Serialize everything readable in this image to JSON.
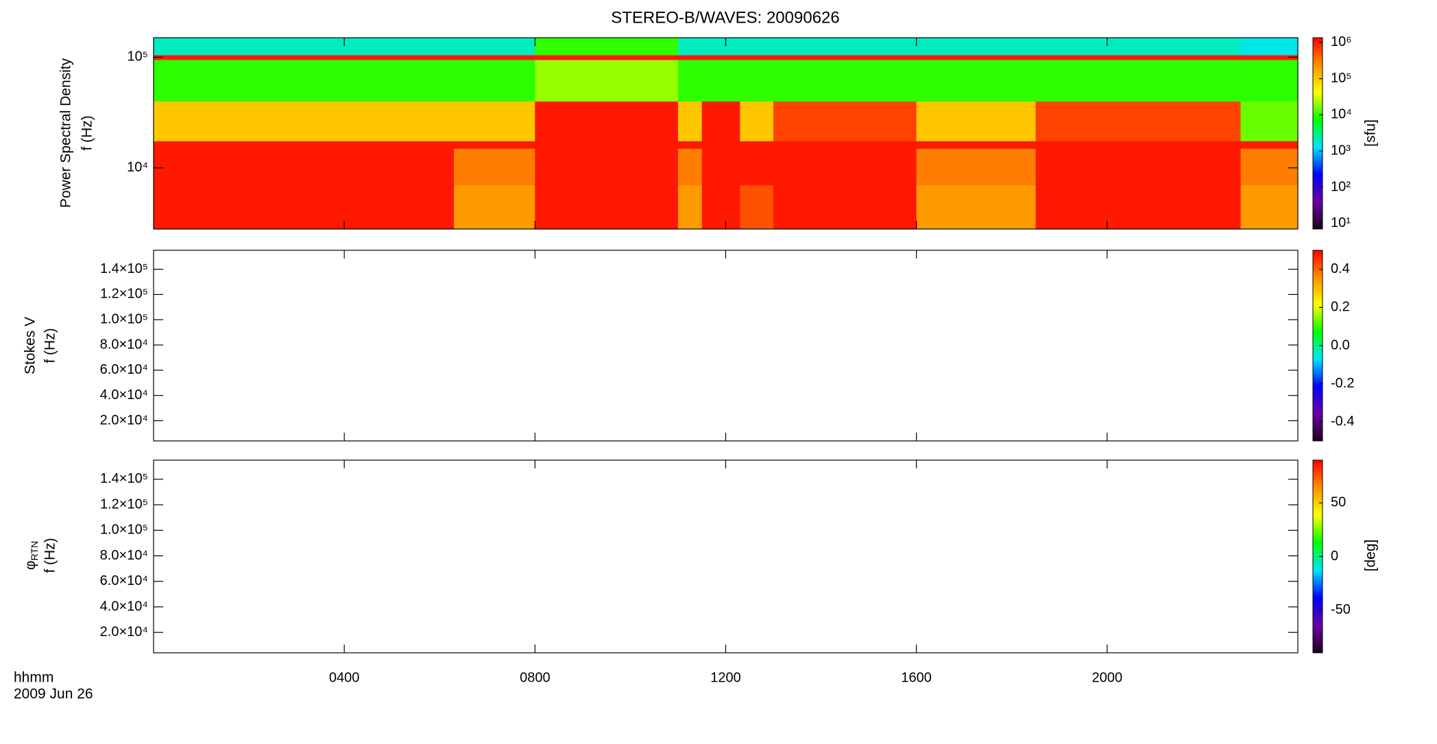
{
  "chart_data": [
    {
      "type": "heatmap",
      "title": "STEREO-B/WAVES: 20090626",
      "ylabel": [
        "Power Spectral Density",
        "f (Hz)"
      ],
      "ylog": true,
      "ylim": [
        2800,
        150000
      ],
      "yticks": [
        {
          "value": 10000,
          "label": "10⁴"
        },
        {
          "value": 100000,
          "label": "10⁵"
        }
      ],
      "xlim": [
        0,
        24
      ],
      "x_edges": [
        0,
        6.3,
        8.0,
        9.5,
        11.0,
        11.5,
        12.3,
        13.0,
        16.0,
        18.5,
        22.8,
        24
      ],
      "y_edges": [
        2800,
        7000,
        15000,
        17500,
        40000,
        95000,
        105000,
        150000
      ],
      "z": [
        [
          1000000,
          200000,
          1000000,
          1000000,
          200000,
          1000000,
          500000,
          1000000,
          200000,
          1000000,
          200000
        ],
        [
          1000000,
          300000,
          1000000,
          1000000,
          300000,
          1000000,
          1000000,
          1000000,
          300000,
          1000000,
          300000
        ],
        [
          1000000,
          1000000,
          1000000,
          1000000,
          1000000,
          1000000,
          1000000,
          1000000,
          1000000,
          1000000,
          1000000
        ],
        [
          100000,
          100000,
          1000000,
          1000000,
          100000,
          1000000,
          100000,
          600000,
          100000,
          600000,
          15000
        ],
        [
          10000,
          10000,
          20000,
          20000,
          10000,
          10000,
          10000,
          10000,
          10000,
          10000,
          10000
        ],
        [
          1000000,
          1000000,
          1000000,
          1000000,
          1000000,
          1000000,
          1000000,
          1000000,
          1000000,
          1000000,
          1000000
        ],
        [
          2000,
          2000,
          10000,
          10000,
          2000,
          2000,
          2000,
          2000,
          2000,
          2000,
          1500
        ]
      ],
      "colorscale": [
        "#1a001a",
        "#6a00a0",
        "#0000ff",
        "#00e5ff",
        "#00ff00",
        "#ffff00",
        "#ff9000",
        "#ff0000"
      ],
      "colorbar": {
        "log": true,
        "lim": [
          7,
          1350000
        ],
        "label": "[sfu]",
        "ticks": [
          {
            "value": 10,
            "label": "10¹"
          },
          {
            "value": 100,
            "label": "10²"
          },
          {
            "value": 1000,
            "label": "10³"
          },
          {
            "value": 10000,
            "label": "10⁴"
          },
          {
            "value": 100000,
            "label": "10⁵"
          },
          {
            "value": 1000000,
            "label": "10⁶"
          }
        ]
      }
    },
    {
      "type": "heatmap",
      "ylabel": [
        "Stokes V",
        "f (Hz)"
      ],
      "ylim": [
        4000,
        155000
      ],
      "yticks": [
        {
          "value": 20000,
          "label": "2.0×10⁴"
        },
        {
          "value": 40000,
          "label": "4.0×10⁴"
        },
        {
          "value": 60000,
          "label": "6.0×10⁴"
        },
        {
          "value": 80000,
          "label": "8.0×10⁴"
        },
        {
          "value": 100000,
          "label": "1.0×10⁵"
        },
        {
          "value": 120000,
          "label": "1.2×10⁵"
        },
        {
          "value": 140000,
          "label": "1.4×10⁵"
        }
      ],
      "xlim": [
        0,
        24
      ],
      "colorscale": [
        "#1a001a",
        "#6a00a0",
        "#0000ff",
        "#00e5ff",
        "#00ff00",
        "#ffff00",
        "#ff9000",
        "#ff0000"
      ],
      "colorbar": {
        "log": false,
        "lim": [
          -0.5,
          0.5
        ],
        "ticks": [
          -0.4,
          -0.2,
          {
            "value": 0,
            "label": "0.0"
          },
          0.2,
          0.4
        ]
      }
    },
    {
      "type": "heatmap",
      "ylabel_symbol": "φ",
      "ylabel_subscript": "RTN",
      "ylabel_unit": "f (Hz)",
      "ylim": [
        4000,
        155000
      ],
      "yticks": [
        {
          "value": 20000,
          "label": "2.0×10⁴"
        },
        {
          "value": 40000,
          "label": "4.0×10⁴"
        },
        {
          "value": 60000,
          "label": "6.0×10⁴"
        },
        {
          "value": 80000,
          "label": "8.0×10⁴"
        },
        {
          "value": 100000,
          "label": "1.0×10⁵"
        },
        {
          "value": 120000,
          "label": "1.2×10⁵"
        },
        {
          "value": 140000,
          "label": "1.4×10⁵"
        }
      ],
      "xlim": [
        0,
        24
      ],
      "xticks": [
        {
          "value": 4,
          "label": "0400"
        },
        {
          "value": 8,
          "label": "0800"
        },
        {
          "value": 12,
          "label": "1200"
        },
        {
          "value": 16,
          "label": "1600"
        },
        {
          "value": 20,
          "label": "2000"
        }
      ],
      "xlabel": [
        "hhmm",
        "2009 Jun 26"
      ],
      "colorscale": [
        "#1a001a",
        "#6a00a0",
        "#0000ff",
        "#00e5ff",
        "#00ff00",
        "#ffff00",
        "#ff9000",
        "#ff0000"
      ],
      "colorbar": {
        "log": false,
        "lim": [
          -90,
          90
        ],
        "label": "[deg]",
        "ticks": [
          -50,
          0,
          50
        ]
      }
    }
  ]
}
